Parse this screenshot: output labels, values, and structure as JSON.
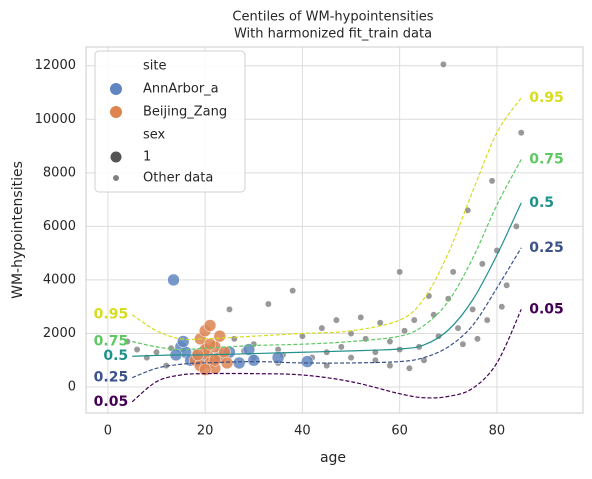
{
  "chart_data": {
    "type": "scatter",
    "title": "Centiles of WM-hypointensities",
    "subtitle": "With harmonized fit_train data",
    "x_label": "age",
    "y_label": "WM-hypointensities",
    "xlim": [
      -4.5,
      97.7
    ],
    "ylim": [
      -970,
      12700
    ],
    "xticks": [
      0,
      20,
      40,
      60,
      80
    ],
    "yticks": [
      0,
      2000,
      4000,
      6000,
      8000,
      10000,
      12000
    ],
    "grid": true,
    "legend": {
      "position": "upper left",
      "site_title": "site",
      "sex_title": "sex",
      "sex_entries": [
        "1"
      ],
      "sex_color": "#555555"
    },
    "series": [
      {
        "name": "Other data",
        "color": "#808080",
        "x": [
          13,
          18,
          20,
          22,
          24,
          25,
          26,
          28,
          30,
          33,
          35,
          36,
          38,
          40,
          42,
          44,
          45,
          47,
          48,
          50,
          50,
          52,
          53,
          55,
          56,
          58,
          60,
          61,
          62,
          63,
          64,
          65,
          66,
          67,
          68,
          69,
          70,
          71,
          72,
          73,
          74,
          75,
          76,
          77,
          78,
          79,
          80,
          81,
          82,
          84,
          85,
          60,
          4,
          6,
          8,
          10,
          12,
          30,
          35,
          45,
          55,
          58
        ],
        "values": [
          1450,
          1300,
          1500,
          1600,
          1250,
          2900,
          1800,
          1350,
          1600,
          3100,
          1400,
          1200,
          3600,
          1900,
          1100,
          2200,
          1300,
          2500,
          1500,
          2000,
          1100,
          2600,
          1800,
          1300,
          2400,
          1700,
          1400,
          2100,
          700,
          2500,
          1500,
          1000,
          3400,
          2700,
          1900,
          12050,
          3300,
          4300,
          2200,
          1600,
          6600,
          2900,
          1800,
          4600,
          2500,
          7700,
          5100,
          3000,
          3800,
          6000,
          9500,
          4300,
          1700,
          1400,
          1100,
          1300,
          800,
          1100,
          900,
          800,
          1000,
          800
        ]
      },
      {
        "name": "AnnArbor_a",
        "color": "#5f86c0",
        "x": [
          13.5,
          15,
          16,
          14,
          17,
          19,
          23,
          25,
          27,
          29,
          30,
          35,
          41,
          15.5
        ],
        "values": [
          4000,
          1500,
          1300,
          1200,
          1000,
          1100,
          1200,
          1300,
          900,
          1400,
          1000,
          1100,
          950,
          1700
        ]
      },
      {
        "name": "Beijing_Zang",
        "color": "#dd8452",
        "x": [
          18,
          19,
          20,
          20.5,
          21,
          21,
          22,
          22,
          23,
          23,
          24,
          19,
          20,
          21,
          22,
          18.5,
          24.5,
          20
        ],
        "values": [
          1000,
          1800,
          2100,
          1200,
          900,
          2300,
          1500,
          700,
          1100,
          1900,
          1300,
          800,
          1400,
          1600,
          1000,
          1200,
          900,
          650
        ]
      }
    ],
    "centiles": {
      "x": [
        5,
        10,
        15,
        20,
        30,
        40,
        50,
        60,
        65,
        70,
        75,
        80,
        85
      ],
      "series": [
        {
          "name": "0.95",
          "color": "#d8dc1f",
          "dashed": true,
          "values": [
            2700,
            2100,
            1800,
            1800,
            1900,
            2000,
            2100,
            2500,
            3300,
            5000,
            7300,
            9500,
            10800
          ]
        },
        {
          "name": "0.75",
          "color": "#5ec962",
          "dashed": true,
          "values": [
            1700,
            1500,
            1400,
            1450,
            1550,
            1600,
            1700,
            1900,
            2300,
            3200,
            4800,
            6800,
            8500
          ]
        },
        {
          "name": "0.5",
          "color": "#21918c",
          "dashed": false,
          "values": [
            1150,
            1180,
            1200,
            1200,
            1250,
            1300,
            1350,
            1420,
            1570,
            2130,
            3250,
            4930,
            6880
          ]
        },
        {
          "name": "0.25",
          "color": "#3b528b",
          "dashed": true,
          "values": [
            350,
            700,
            850,
            900,
            950,
            900,
            900,
            950,
            1100,
            1500,
            2300,
            3700,
            5200
          ]
        },
        {
          "name": "0.05",
          "color": "#440154",
          "dashed": true,
          "values": [
            -550,
            200,
            450,
            500,
            500,
            450,
            200,
            -250,
            -400,
            -350,
            -50,
            900,
            2900
          ]
        }
      ]
    }
  }
}
